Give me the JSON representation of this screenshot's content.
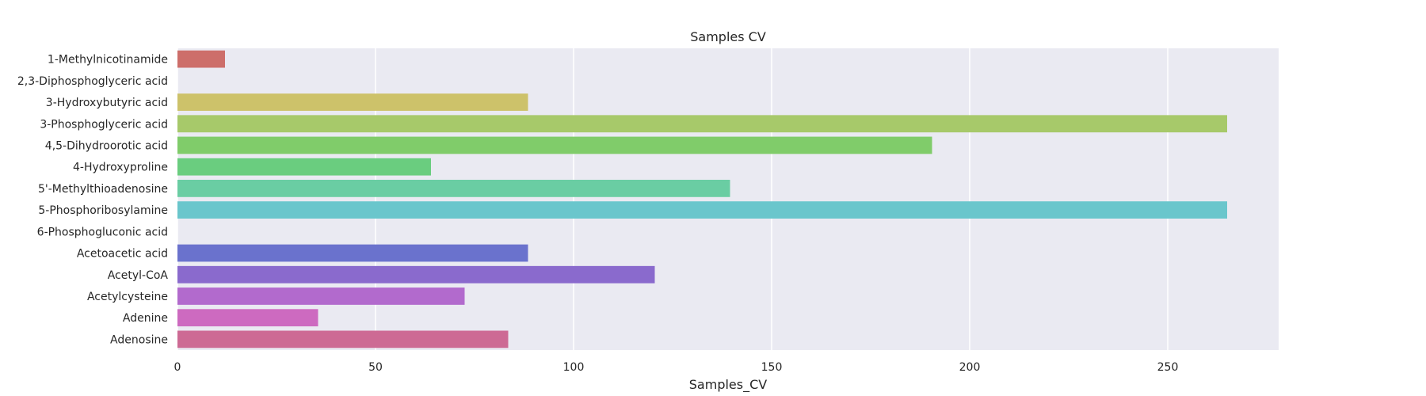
{
  "chart_data": {
    "type": "bar",
    "orientation": "horizontal",
    "title": "Samples CV",
    "xlabel": "Samples_CV",
    "ylabel": "",
    "xlim": [
      0,
      278
    ],
    "xticks": [
      0,
      50,
      100,
      150,
      200,
      250
    ],
    "grid": true,
    "legend": "none",
    "background": "#eaeaf2",
    "categories": [
      "1-Methylnicotinamide",
      "2,3-Diphosphoglyceric acid",
      "3-Hydroxybutyric acid",
      "3-Phosphoglyceric acid",
      "4,5-Dihydroorotic acid",
      "4-Hydroxyproline",
      "5'-Methylthioadenosine",
      "5-Phosphoribosylamine",
      "6-Phosphogluconic acid",
      "Acetoacetic acid",
      "Acetyl-CoA",
      "Acetylcysteine",
      "Adenine",
      "Adenosine"
    ],
    "values": [
      12,
      0,
      88.5,
      265,
      190.5,
      64,
      139.5,
      265,
      0,
      88.5,
      120.5,
      72.5,
      35.5,
      83.5
    ],
    "colors": [
      "#cd6e6a",
      "#cd9b5c",
      "#cdc26a",
      "#a7c96a",
      "#80cc6a",
      "#6acd7f",
      "#6acda3",
      "#6ac6cc",
      "#6a9ecd",
      "#6a72cd",
      "#8a6acd",
      "#b26acd",
      "#cd6ac0",
      "#cd6a94"
    ]
  }
}
